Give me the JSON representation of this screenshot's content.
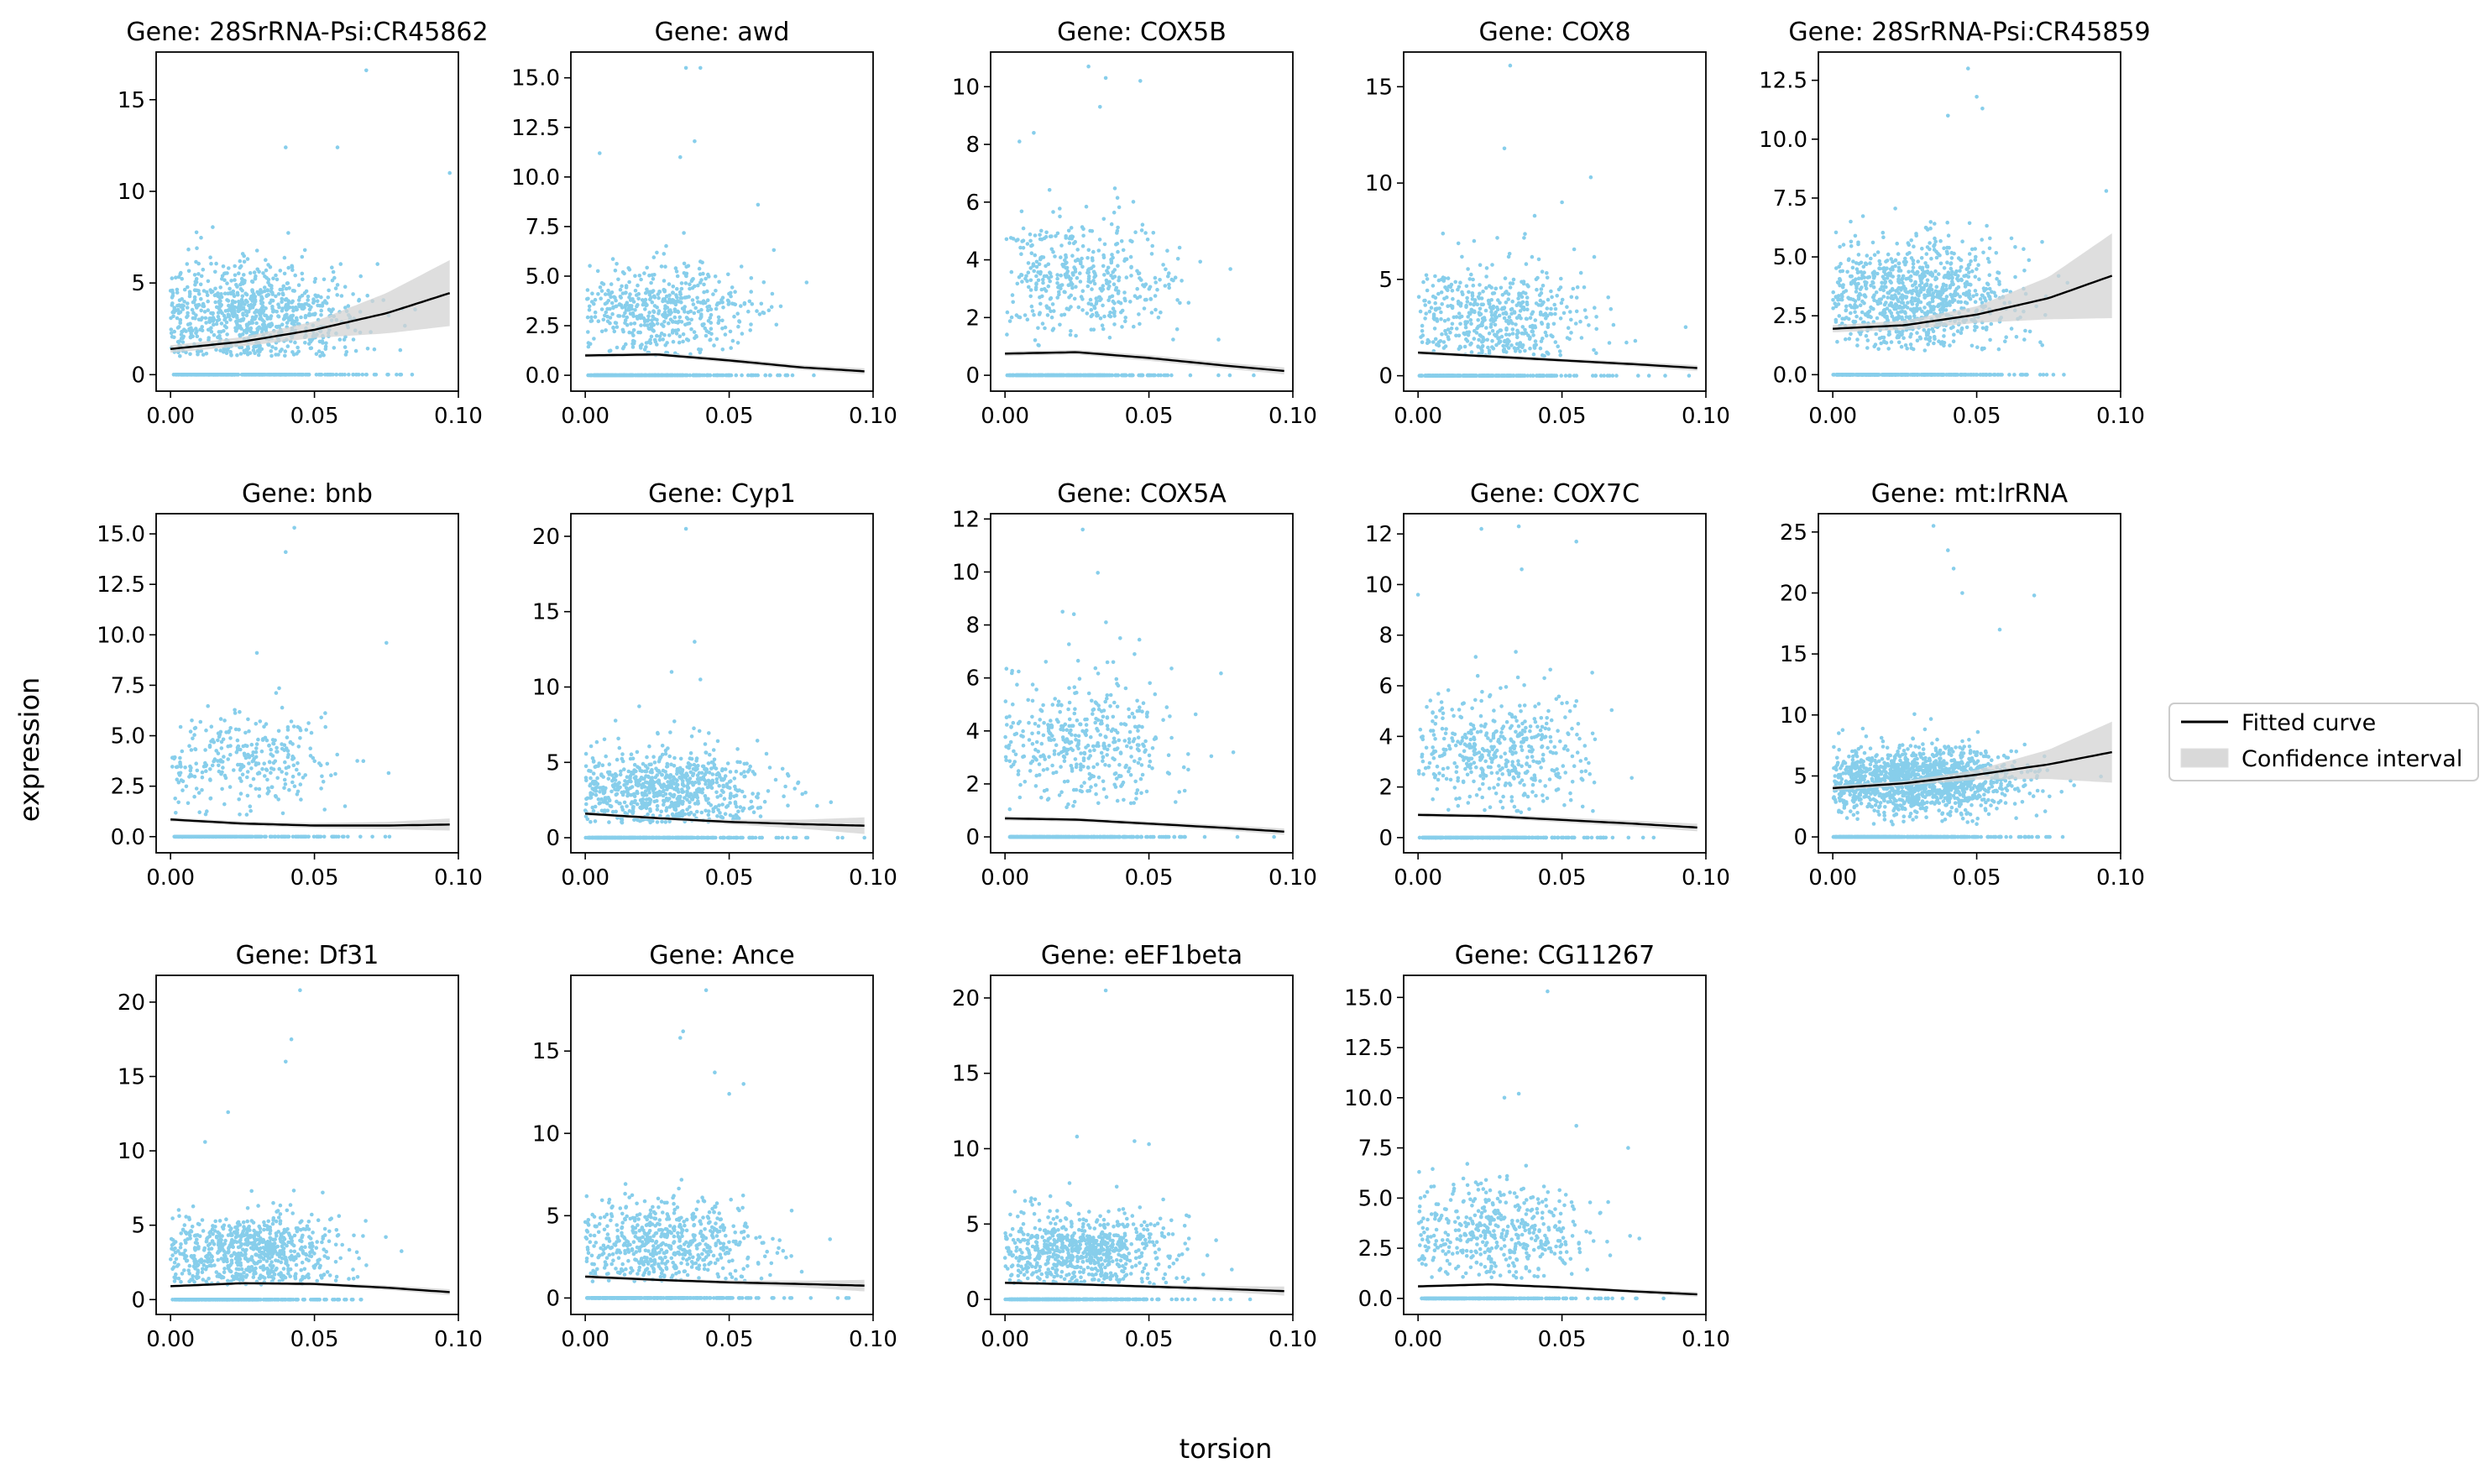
{
  "figure": {
    "xlabel": "torsion",
    "ylabel": "expression",
    "legend": {
      "placement": "right",
      "entries": [
        {
          "label": "Fitted curve",
          "kind": "line",
          "color": "#000000"
        },
        {
          "label": "Confidence interval",
          "kind": "patch",
          "color": "#d9d9d9"
        }
      ]
    },
    "point_color": "#87ceeb"
  },
  "chart_data": [
    {
      "type": "scatter",
      "title": "Gene: 28SrRNA-Psi:CR45862",
      "xlim": [
        -0.005,
        0.1
      ],
      "ylim": [
        -0.9,
        17.6
      ],
      "xticks": [
        0.0,
        0.05,
        0.1
      ],
      "xtick_labels": [
        "0.00",
        "0.05",
        "0.10"
      ],
      "yticks": [
        0,
        5,
        10,
        15
      ],
      "ytick_labels": [
        "0",
        "5",
        "10",
        "15"
      ],
      "cloud": {
        "n": 850,
        "center": 3.2,
        "spread": 1.4,
        "xspread": 0.017,
        "xmax": 0.098,
        "outliers": [
          [
            0.068,
            16.6
          ],
          [
            0.097,
            11.0
          ],
          [
            0.04,
            12.4
          ],
          [
            0.058,
            12.4
          ]
        ],
        "zero_n": 400
      },
      "fit": {
        "x": [
          0.0,
          0.025,
          0.05,
          0.075,
          0.097
        ],
        "y": [
          1.4,
          1.8,
          2.45,
          3.35,
          4.45
        ],
        "ci_halfwidth": [
          0.2,
          0.25,
          0.45,
          1.1,
          1.8
        ]
      }
    },
    {
      "type": "scatter",
      "title": "Gene: awd",
      "xlim": [
        -0.005,
        0.1
      ],
      "ylim": [
        -0.8,
        16.3
      ],
      "xticks": [
        0.0,
        0.05,
        0.1
      ],
      "xtick_labels": [
        "0.00",
        "0.05",
        "0.10"
      ],
      "yticks": [
        0,
        2.5,
        5,
        7.5,
        10,
        12.5,
        15
      ],
      "ytick_labels": [
        "0.0",
        "2.5",
        "5.0",
        "7.5",
        "10.0",
        "12.5",
        "15.0"
      ],
      "cloud": {
        "n": 500,
        "center": 3.4,
        "spread": 1.1,
        "xspread": 0.016,
        "xmax": 0.095,
        "outliers": [
          [
            0.035,
            15.5
          ],
          [
            0.04,
            15.5
          ],
          [
            0.038,
            11.8
          ],
          [
            0.033,
            11.0
          ],
          [
            0.005,
            11.2
          ],
          [
            0.06,
            8.6
          ]
        ],
        "zero_n": 320
      },
      "fit": {
        "x": [
          0.0,
          0.025,
          0.05,
          0.075,
          0.097
        ],
        "y": [
          1.0,
          1.05,
          0.75,
          0.4,
          0.2
        ],
        "ci_halfwidth": [
          0.1,
          0.1,
          0.12,
          0.12,
          0.15
        ]
      }
    },
    {
      "type": "scatter",
      "title": "Gene: COX5B",
      "xlim": [
        -0.005,
        0.1
      ],
      "ylim": [
        -0.55,
        11.2
      ],
      "xticks": [
        0.0,
        0.05,
        0.1
      ],
      "xtick_labels": [
        "0.00",
        "0.05",
        "0.10"
      ],
      "yticks": [
        0,
        2,
        4,
        6,
        8,
        10
      ],
      "ytick_labels": [
        "0",
        "2",
        "4",
        "6",
        "8",
        "10"
      ],
      "cloud": {
        "n": 420,
        "center": 3.4,
        "spread": 1.1,
        "xspread": 0.016,
        "xmax": 0.095,
        "outliers": [
          [
            0.029,
            10.7
          ],
          [
            0.035,
            10.3
          ],
          [
            0.047,
            10.2
          ],
          [
            0.01,
            8.4
          ],
          [
            0.005,
            8.1
          ],
          [
            0.033,
            9.3
          ]
        ],
        "zero_n": 300
      },
      "fit": {
        "x": [
          0.0,
          0.025,
          0.05,
          0.075,
          0.097
        ],
        "y": [
          0.75,
          0.8,
          0.6,
          0.35,
          0.15
        ],
        "ci_halfwidth": [
          0.08,
          0.08,
          0.1,
          0.1,
          0.12
        ]
      }
    },
    {
      "type": "scatter",
      "title": "Gene: COX8",
      "xlim": [
        -0.005,
        0.1
      ],
      "ylim": [
        -0.8,
        16.8
      ],
      "xticks": [
        0.0,
        0.05,
        0.1
      ],
      "xtick_labels": [
        "0.00",
        "0.05",
        "0.10"
      ],
      "yticks": [
        0,
        5,
        10,
        15
      ],
      "ytick_labels": [
        "0",
        "5",
        "10",
        "15"
      ],
      "cloud": {
        "n": 500,
        "center": 3.0,
        "spread": 1.3,
        "xspread": 0.016,
        "xmax": 0.095,
        "outliers": [
          [
            0.032,
            16.1
          ],
          [
            0.03,
            11.8
          ],
          [
            0.06,
            10.3
          ],
          [
            0.05,
            9.0
          ]
        ],
        "zero_n": 320
      },
      "fit": {
        "x": [
          0.0,
          0.025,
          0.05,
          0.075,
          0.097
        ],
        "y": [
          1.2,
          1.0,
          0.8,
          0.6,
          0.4
        ],
        "ci_halfwidth": [
          0.1,
          0.1,
          0.1,
          0.12,
          0.15
        ]
      }
    },
    {
      "type": "scatter",
      "title": "Gene: 28SrRNA-Psi:CR45859",
      "xlim": [
        -0.005,
        0.1
      ],
      "ylim": [
        -0.7,
        13.7
      ],
      "xticks": [
        0.0,
        0.05,
        0.1
      ],
      "xtick_labels": [
        "0.00",
        "0.05",
        "0.10"
      ],
      "yticks": [
        0,
        2.5,
        5,
        7.5,
        10,
        12.5
      ],
      "ytick_labels": [
        "0.0",
        "2.5",
        "5.0",
        "7.5",
        "10.0",
        "12.5"
      ],
      "cloud": {
        "n": 900,
        "center": 3.3,
        "spread": 1.2,
        "xspread": 0.017,
        "xmax": 0.098,
        "outliers": [
          [
            0.047,
            13.0
          ],
          [
            0.05,
            11.8
          ],
          [
            0.052,
            11.3
          ],
          [
            0.04,
            11.0
          ],
          [
            0.095,
            7.8
          ]
        ],
        "zero_n": 400
      },
      "fit": {
        "x": [
          0.0,
          0.025,
          0.05,
          0.075,
          0.097
        ],
        "y": [
          1.95,
          2.1,
          2.55,
          3.25,
          4.2
        ],
        "ci_halfwidth": [
          0.15,
          0.2,
          0.35,
          0.9,
          1.8
        ]
      }
    },
    {
      "type": "scatter",
      "title": "Gene: bnb",
      "xlim": [
        -0.005,
        0.1
      ],
      "ylim": [
        -0.8,
        16.0
      ],
      "xticks": [
        0.0,
        0.05,
        0.1
      ],
      "xtick_labels": [
        "0.00",
        "0.05",
        "0.10"
      ],
      "yticks": [
        0,
        2.5,
        5,
        7.5,
        10,
        12.5,
        15
      ],
      "ytick_labels": [
        "0.0",
        "2.5",
        "5.0",
        "7.5",
        "10.0",
        "12.5",
        "15.0"
      ],
      "cloud": {
        "n": 300,
        "center": 3.7,
        "spread": 1.2,
        "xspread": 0.016,
        "xmax": 0.095,
        "outliers": [
          [
            0.043,
            15.3
          ],
          [
            0.04,
            14.1
          ],
          [
            0.075,
            9.6
          ],
          [
            0.03,
            9.1
          ]
        ],
        "zero_n": 280
      },
      "fit": {
        "x": [
          0.0,
          0.025,
          0.05,
          0.075,
          0.097
        ],
        "y": [
          0.85,
          0.65,
          0.55,
          0.55,
          0.6
        ],
        "ci_halfwidth": [
          0.1,
          0.1,
          0.12,
          0.18,
          0.3
        ]
      }
    },
    {
      "type": "scatter",
      "title": "Gene: Cyp1",
      "xlim": [
        -0.005,
        0.1
      ],
      "ylim": [
        -1.0,
        21.5
      ],
      "xticks": [
        0.0,
        0.05,
        0.1
      ],
      "xtick_labels": [
        "0.00",
        "0.05",
        "0.10"
      ],
      "yticks": [
        0,
        5,
        10,
        15,
        20
      ],
      "ytick_labels": [
        "0",
        "5",
        "10",
        "15",
        "20"
      ],
      "cloud": {
        "n": 750,
        "center": 3.2,
        "spread": 1.3,
        "xspread": 0.017,
        "xmax": 0.097,
        "outliers": [
          [
            0.035,
            20.5
          ],
          [
            0.038,
            13.0
          ],
          [
            0.03,
            11.0
          ],
          [
            0.04,
            10.5
          ]
        ],
        "zero_n": 380
      },
      "fit": {
        "x": [
          0.0,
          0.025,
          0.05,
          0.075,
          0.097
        ],
        "y": [
          1.6,
          1.3,
          1.05,
          0.9,
          0.8
        ],
        "ci_halfwidth": [
          0.12,
          0.1,
          0.15,
          0.3,
          0.55
        ]
      }
    },
    {
      "type": "scatter",
      "title": "Gene: COX5A",
      "xlim": [
        -0.005,
        0.1
      ],
      "ylim": [
        -0.6,
        12.2
      ],
      "xticks": [
        0.0,
        0.05,
        0.1
      ],
      "xtick_labels": [
        "0.00",
        "0.05",
        "0.10"
      ],
      "yticks": [
        0,
        2,
        4,
        6,
        8,
        10,
        12
      ],
      "ytick_labels": [
        "0",
        "2",
        "4",
        "6",
        "8",
        "10",
        "12"
      ],
      "cloud": {
        "n": 420,
        "center": 3.5,
        "spread": 1.2,
        "xspread": 0.016,
        "xmax": 0.095,
        "outliers": [
          [
            0.027,
            11.6
          ],
          [
            0.02,
            8.5
          ],
          [
            0.04,
            7.5
          ],
          [
            0.045,
            6.9
          ]
        ],
        "zero_n": 300
      },
      "fit": {
        "x": [
          0.0,
          0.025,
          0.05,
          0.075,
          0.097
        ],
        "y": [
          0.7,
          0.65,
          0.5,
          0.35,
          0.2
        ],
        "ci_halfwidth": [
          0.08,
          0.08,
          0.08,
          0.1,
          0.12
        ]
      }
    },
    {
      "type": "scatter",
      "title": "Gene: COX7C",
      "xlim": [
        -0.005,
        0.1
      ],
      "ylim": [
        -0.6,
        12.8
      ],
      "xticks": [
        0.0,
        0.05,
        0.1
      ],
      "xtick_labels": [
        "0.00",
        "0.05",
        "0.10"
      ],
      "yticks": [
        0,
        2,
        4,
        6,
        8,
        10,
        12
      ],
      "ytick_labels": [
        "0",
        "2",
        "4",
        "6",
        "8",
        "10",
        "12"
      ],
      "cloud": {
        "n": 450,
        "center": 3.3,
        "spread": 1.2,
        "xspread": 0.016,
        "xmax": 0.095,
        "outliers": [
          [
            0.035,
            12.3
          ],
          [
            0.022,
            12.2
          ],
          [
            0.055,
            11.7
          ],
          [
            0.036,
            10.6
          ],
          [
            0.0,
            9.6
          ]
        ],
        "zero_n": 300
      },
      "fit": {
        "x": [
          0.0,
          0.025,
          0.05,
          0.075,
          0.097
        ],
        "y": [
          0.9,
          0.85,
          0.7,
          0.55,
          0.4
        ],
        "ci_halfwidth": [
          0.08,
          0.08,
          0.1,
          0.12,
          0.15
        ]
      }
    },
    {
      "type": "scatter",
      "title": "Gene: mt:lrRNA",
      "xlim": [
        -0.005,
        0.1
      ],
      "ylim": [
        -1.3,
        26.5
      ],
      "xticks": [
        0.0,
        0.05,
        0.1
      ],
      "xtick_labels": [
        "0.00",
        "0.05",
        "0.10"
      ],
      "yticks": [
        0,
        5,
        10,
        15,
        20,
        25
      ],
      "ytick_labels": [
        "0",
        "5",
        "10",
        "15",
        "20",
        "25"
      ],
      "cloud": {
        "n": 1400,
        "center": 4.6,
        "spread": 1.3,
        "xspread": 0.017,
        "xmax": 0.1,
        "outliers": [
          [
            0.035,
            25.5
          ],
          [
            0.04,
            23.5
          ],
          [
            0.042,
            22.0
          ],
          [
            0.045,
            20.0
          ],
          [
            0.07,
            19.8
          ],
          [
            0.058,
            17.0
          ]
        ],
        "zero_n": 420
      },
      "fit": {
        "x": [
          0.0,
          0.025,
          0.05,
          0.075,
          0.097
        ],
        "y": [
          4.0,
          4.4,
          5.1,
          5.95,
          6.95
        ],
        "ci_halfwidth": [
          0.2,
          0.2,
          0.4,
          1.2,
          2.5
        ]
      }
    },
    {
      "type": "scatter",
      "title": "Gene: Df31",
      "xlim": [
        -0.005,
        0.1
      ],
      "ylim": [
        -1.0,
        21.8
      ],
      "xticks": [
        0.0,
        0.05,
        0.1
      ],
      "xtick_labels": [
        "0.00",
        "0.05",
        "0.10"
      ],
      "yticks": [
        0,
        5,
        10,
        15,
        20
      ],
      "ytick_labels": [
        "0",
        "5",
        "10",
        "15",
        "20"
      ],
      "cloud": {
        "n": 750,
        "center": 3.2,
        "spread": 1.3,
        "xspread": 0.016,
        "xmax": 0.096,
        "outliers": [
          [
            0.045,
            20.8
          ],
          [
            0.042,
            17.5
          ],
          [
            0.04,
            16.0
          ],
          [
            0.02,
            12.6
          ],
          [
            0.012,
            10.6
          ]
        ],
        "zero_n": 380
      },
      "fit": {
        "x": [
          0.0,
          0.025,
          0.05,
          0.075,
          0.097
        ],
        "y": [
          0.9,
          1.1,
          1.05,
          0.8,
          0.5
        ],
        "ci_halfwidth": [
          0.1,
          0.1,
          0.12,
          0.15,
          0.2
        ]
      }
    },
    {
      "type": "scatter",
      "title": "Gene: Ance",
      "xlim": [
        -0.005,
        0.1
      ],
      "ylim": [
        -1.0,
        19.6
      ],
      "xticks": [
        0.0,
        0.05,
        0.1
      ],
      "xtick_labels": [
        "0.00",
        "0.05",
        "0.10"
      ],
      "yticks": [
        0,
        5,
        10,
        15
      ],
      "ytick_labels": [
        "0",
        "5",
        "10",
        "15"
      ],
      "cloud": {
        "n": 600,
        "center": 3.4,
        "spread": 1.3,
        "xspread": 0.017,
        "xmax": 0.097,
        "outliers": [
          [
            0.042,
            18.7
          ],
          [
            0.034,
            16.2
          ],
          [
            0.033,
            15.8
          ],
          [
            0.055,
            13.0
          ],
          [
            0.045,
            13.7
          ],
          [
            0.05,
            12.4
          ]
        ],
        "zero_n": 360
      },
      "fit": {
        "x": [
          0.0,
          0.025,
          0.05,
          0.075,
          0.097
        ],
        "y": [
          1.3,
          1.1,
          0.95,
          0.85,
          0.75
        ],
        "ci_halfwidth": [
          0.12,
          0.1,
          0.12,
          0.2,
          0.35
        ]
      }
    },
    {
      "type": "scatter",
      "title": "Gene: eEF1beta",
      "xlim": [
        -0.005,
        0.1
      ],
      "ylim": [
        -1.0,
        21.5
      ],
      "xticks": [
        0.0,
        0.05,
        0.1
      ],
      "xtick_labels": [
        "0.00",
        "0.05",
        "0.10"
      ],
      "yticks": [
        0,
        5,
        10,
        15,
        20
      ],
      "ytick_labels": [
        "0",
        "5",
        "10",
        "15",
        "20"
      ],
      "cloud": {
        "n": 700,
        "center": 3.2,
        "spread": 1.3,
        "xspread": 0.016,
        "xmax": 0.096,
        "outliers": [
          [
            0.035,
            20.5
          ],
          [
            0.045,
            10.5
          ],
          [
            0.025,
            10.8
          ],
          [
            0.05,
            10.3
          ]
        ],
        "zero_n": 370
      },
      "fit": {
        "x": [
          0.0,
          0.025,
          0.05,
          0.075,
          0.097
        ],
        "y": [
          1.1,
          1.0,
          0.85,
          0.7,
          0.55
        ],
        "ci_halfwidth": [
          0.1,
          0.1,
          0.12,
          0.18,
          0.3
        ]
      }
    },
    {
      "type": "scatter",
      "title": "Gene: CG11267",
      "xlim": [
        -0.005,
        0.1
      ],
      "ylim": [
        -0.8,
        16.1
      ],
      "xticks": [
        0.0,
        0.05,
        0.1
      ],
      "xtick_labels": [
        "0.00",
        "0.05",
        "0.10"
      ],
      "yticks": [
        0,
        2.5,
        5,
        7.5,
        10,
        12.5,
        15
      ],
      "ytick_labels": [
        "0.0",
        "2.5",
        "5.0",
        "7.5",
        "10.0",
        "12.5",
        "15.0"
      ],
      "cloud": {
        "n": 450,
        "center": 3.3,
        "spread": 1.2,
        "xspread": 0.016,
        "xmax": 0.095,
        "outliers": [
          [
            0.045,
            15.3
          ],
          [
            0.035,
            10.2
          ],
          [
            0.03,
            10.0
          ],
          [
            0.073,
            7.5
          ],
          [
            0.055,
            8.6
          ]
        ],
        "zero_n": 300
      },
      "fit": {
        "x": [
          0.0,
          0.025,
          0.05,
          0.075,
          0.097
        ],
        "y": [
          0.6,
          0.7,
          0.55,
          0.35,
          0.2
        ],
        "ci_halfwidth": [
          0.08,
          0.08,
          0.08,
          0.1,
          0.12
        ]
      }
    }
  ]
}
